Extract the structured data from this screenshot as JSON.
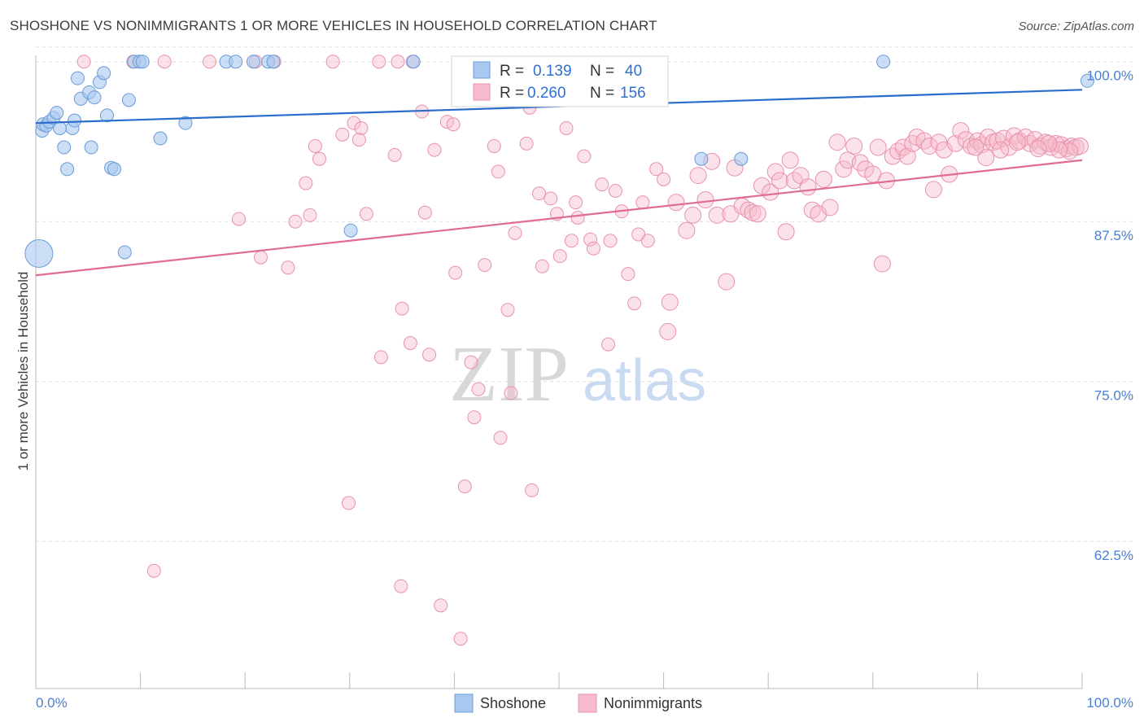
{
  "header": {
    "title": "SHOSHONE VS NONIMMIGRANTS 1 OR MORE VEHICLES IN HOUSEHOLD CORRELATION CHART",
    "source": "Source: ZipAtlas.com"
  },
  "watermark": {
    "zip": "ZIP",
    "atlas": "atlas"
  },
  "colors": {
    "shoshone_fill": "#a9c8f0",
    "shoshone_stroke": "#6a9bd8",
    "shoshone_line": "#2a6ccc",
    "nonimm_fill": "#f6bccd",
    "nonimm_stroke": "#e892ad",
    "nonimm_line": "#e06c96",
    "tick_label": "#4a7fd1"
  },
  "legend": {
    "rows": [
      {
        "r_label": "R =",
        "r_value": "0.139",
        "n_label": "N =",
        "n_value": "40"
      },
      {
        "r_label": "R =",
        "r_value": "0.260",
        "n_label": "N =",
        "n_value": "156"
      }
    ],
    "bottom": [
      "Shoshone",
      "Nonimmigrants"
    ]
  },
  "chart_data": {
    "type": "scatter",
    "title": "SHOSHONE VS NONIMMIGRANTS 1 OR MORE VEHICLES IN HOUSEHOLD CORRELATION CHART",
    "xlabel": "",
    "ylabel": "1 or more Vehicles in Household",
    "xlim": [
      0,
      100
    ],
    "ylim": [
      51,
      101
    ],
    "x_tick_labels": [
      "0.0%",
      "100.0%"
    ],
    "y_ticks": [
      100,
      87.5,
      75,
      62.5
    ],
    "y_tick_labels": [
      "100.0%",
      "87.5%",
      "75.0%",
      "62.5%"
    ],
    "grid": "horizontal dashed",
    "legend_placement": "top-center",
    "series": [
      {
        "name": "Shoshone",
        "trend": {
          "x": [
            0,
            100
          ],
          "y": [
            95.2,
            97.8
          ]
        },
        "points": [
          [
            0.3,
            85.0
          ],
          [
            0.6,
            94.6
          ],
          [
            0.7,
            95.1
          ],
          [
            1.0,
            95.0
          ],
          [
            1.3,
            95.3
          ],
          [
            1.7,
            95.6
          ],
          [
            2.0,
            96.0
          ],
          [
            2.3,
            94.8
          ],
          [
            2.7,
            93.3
          ],
          [
            3.0,
            91.6
          ],
          [
            3.5,
            94.8
          ],
          [
            3.7,
            95.4
          ],
          [
            4.0,
            98.7
          ],
          [
            4.3,
            97.1
          ],
          [
            5.1,
            97.6
          ],
          [
            5.3,
            93.3
          ],
          [
            5.6,
            97.2
          ],
          [
            6.1,
            98.4
          ],
          [
            6.5,
            99.1
          ],
          [
            6.8,
            95.8
          ],
          [
            7.2,
            91.7
          ],
          [
            7.5,
            91.6
          ],
          [
            8.5,
            85.1
          ],
          [
            8.9,
            97.0
          ],
          [
            9.4,
            100.0
          ],
          [
            9.9,
            100.0
          ],
          [
            10.2,
            100.0
          ],
          [
            11.9,
            94.0
          ],
          [
            14.3,
            95.2
          ],
          [
            18.2,
            100.0
          ],
          [
            19.1,
            100.0
          ],
          [
            20.8,
            100.0
          ],
          [
            22.2,
            100.0
          ],
          [
            22.7,
            100.0
          ],
          [
            30.1,
            86.8
          ],
          [
            36.1,
            100.0
          ],
          [
            63.6,
            92.4
          ],
          [
            67.4,
            92.4
          ],
          [
            81.0,
            100.0
          ],
          [
            100.5,
            98.5
          ]
        ]
      },
      {
        "name": "Nonimmigrants",
        "trend": {
          "x": [
            0,
            100
          ],
          "y": [
            83.3,
            92.3
          ]
        },
        "points": [
          [
            4.6,
            100.0
          ],
          [
            9.3,
            100.0
          ],
          [
            12.3,
            100.0
          ],
          [
            16.6,
            100.0
          ],
          [
            21.0,
            100.0
          ],
          [
            22.8,
            100.0
          ],
          [
            28.4,
            100.0
          ],
          [
            32.8,
            100.0
          ],
          [
            34.6,
            100.0
          ],
          [
            36.0,
            100.0
          ],
          [
            11.3,
            60.2
          ],
          [
            19.4,
            87.7
          ],
          [
            21.5,
            84.7
          ],
          [
            24.1,
            83.9
          ],
          [
            24.8,
            87.5
          ],
          [
            25.8,
            90.5
          ],
          [
            26.2,
            88.0
          ],
          [
            26.7,
            93.4
          ],
          [
            27.1,
            92.4
          ],
          [
            29.3,
            94.3
          ],
          [
            29.9,
            65.5
          ],
          [
            30.4,
            95.2
          ],
          [
            31.1,
            94.8
          ],
          [
            30.9,
            93.9
          ],
          [
            31.6,
            88.1
          ],
          [
            33.0,
            76.9
          ],
          [
            34.3,
            92.7
          ],
          [
            35.0,
            80.7
          ],
          [
            34.9,
            59.0
          ],
          [
            35.8,
            78.0
          ],
          [
            36.9,
            96.1
          ],
          [
            37.2,
            88.2
          ],
          [
            37.6,
            77.1
          ],
          [
            38.1,
            93.1
          ],
          [
            38.7,
            57.5
          ],
          [
            39.3,
            95.3
          ],
          [
            39.9,
            95.1
          ],
          [
            40.1,
            83.5
          ],
          [
            40.6,
            54.9
          ],
          [
            41.0,
            66.8
          ],
          [
            41.6,
            76.5
          ],
          [
            41.9,
            72.2
          ],
          [
            42.3,
            74.4
          ],
          [
            42.9,
            84.1
          ],
          [
            43.8,
            93.4
          ],
          [
            44.2,
            91.4
          ],
          [
            44.4,
            70.6
          ],
          [
            45.1,
            80.6
          ],
          [
            45.4,
            74.1
          ],
          [
            45.8,
            86.6
          ],
          [
            46.9,
            93.6
          ],
          [
            47.2,
            96.4
          ],
          [
            47.4,
            66.5
          ],
          [
            48.1,
            89.7
          ],
          [
            48.4,
            84.0
          ],
          [
            49.2,
            89.3
          ],
          [
            49.8,
            88.1
          ],
          [
            50.1,
            84.8
          ],
          [
            50.7,
            94.8
          ],
          [
            51.2,
            86.0
          ],
          [
            51.6,
            89.0
          ],
          [
            51.8,
            87.8
          ],
          [
            52.4,
            92.6
          ],
          [
            53.0,
            86.1
          ],
          [
            53.3,
            85.4
          ],
          [
            54.1,
            90.4
          ],
          [
            54.7,
            77.9
          ],
          [
            54.9,
            86.0
          ],
          [
            55.4,
            89.9
          ],
          [
            56.0,
            88.3
          ],
          [
            56.6,
            83.4
          ],
          [
            57.2,
            81.1
          ],
          [
            57.6,
            86.5
          ],
          [
            58.0,
            89.0
          ],
          [
            58.5,
            86.0
          ],
          [
            59.3,
            91.6
          ],
          [
            60.0,
            90.8
          ],
          [
            60.4,
            78.9
          ],
          [
            60.6,
            81.2
          ],
          [
            61.2,
            89.0
          ],
          [
            62.2,
            86.8
          ],
          [
            62.8,
            88.0
          ],
          [
            63.3,
            91.1
          ],
          [
            64.0,
            89.2
          ],
          [
            64.6,
            92.2
          ],
          [
            65.1,
            88.0
          ],
          [
            66.0,
            82.8
          ],
          [
            66.4,
            88.1
          ],
          [
            66.8,
            91.7
          ],
          [
            67.5,
            88.7
          ],
          [
            68.1,
            88.4
          ],
          [
            68.5,
            88.2
          ],
          [
            69.0,
            88.1
          ],
          [
            69.4,
            90.3
          ],
          [
            70.2,
            89.8
          ],
          [
            70.7,
            91.4
          ],
          [
            71.1,
            90.7
          ],
          [
            71.7,
            86.7
          ],
          [
            72.1,
            92.3
          ],
          [
            72.5,
            90.7
          ],
          [
            73.1,
            91.1
          ],
          [
            73.8,
            90.2
          ],
          [
            74.2,
            88.4
          ],
          [
            74.8,
            88.1
          ],
          [
            75.3,
            90.8
          ],
          [
            75.9,
            88.6
          ],
          [
            76.6,
            93.7
          ],
          [
            77.2,
            91.6
          ],
          [
            77.6,
            92.3
          ],
          [
            78.2,
            93.4
          ],
          [
            78.8,
            92.1
          ],
          [
            79.3,
            91.6
          ],
          [
            80.0,
            91.2
          ],
          [
            80.5,
            93.3
          ],
          [
            80.9,
            84.2
          ],
          [
            81.3,
            90.7
          ],
          [
            81.9,
            92.6
          ],
          [
            82.4,
            93.0
          ],
          [
            82.9,
            93.3
          ],
          [
            83.3,
            92.6
          ],
          [
            83.8,
            93.6
          ],
          [
            84.2,
            94.1
          ],
          [
            84.9,
            93.8
          ],
          [
            85.4,
            93.4
          ],
          [
            85.8,
            90.0
          ],
          [
            86.3,
            93.7
          ],
          [
            86.8,
            93.1
          ],
          [
            87.3,
            91.2
          ],
          [
            87.9,
            93.6
          ],
          [
            88.4,
            94.6
          ],
          [
            88.9,
            93.9
          ],
          [
            89.4,
            93.4
          ],
          [
            90.0,
            93.8
          ],
          [
            90.4,
            93.5
          ],
          [
            91.0,
            94.1
          ],
          [
            91.5,
            93.7
          ],
          [
            91.9,
            93.8
          ],
          [
            92.5,
            94.0
          ],
          [
            93.0,
            93.3
          ],
          [
            93.5,
            94.2
          ],
          [
            94.0,
            93.8
          ],
          [
            94.6,
            94.1
          ],
          [
            95.0,
            93.6
          ],
          [
            95.5,
            93.9
          ],
          [
            96.0,
            93.4
          ],
          [
            96.5,
            93.7
          ],
          [
            97.0,
            93.3
          ],
          [
            97.5,
            93.6
          ],
          [
            98.0,
            93.5
          ],
          [
            98.5,
            93.2
          ],
          [
            99.0,
            93.4
          ],
          [
            99.4,
            93.3
          ],
          [
            99.8,
            93.4
          ],
          [
            98.8,
            93.0
          ],
          [
            97.8,
            93.1
          ],
          [
            96.8,
            93.6
          ],
          [
            95.8,
            93.2
          ],
          [
            93.8,
            93.7
          ],
          [
            92.2,
            93.1
          ],
          [
            90.8,
            92.5
          ],
          [
            89.8,
            93.3
          ]
        ]
      }
    ]
  }
}
